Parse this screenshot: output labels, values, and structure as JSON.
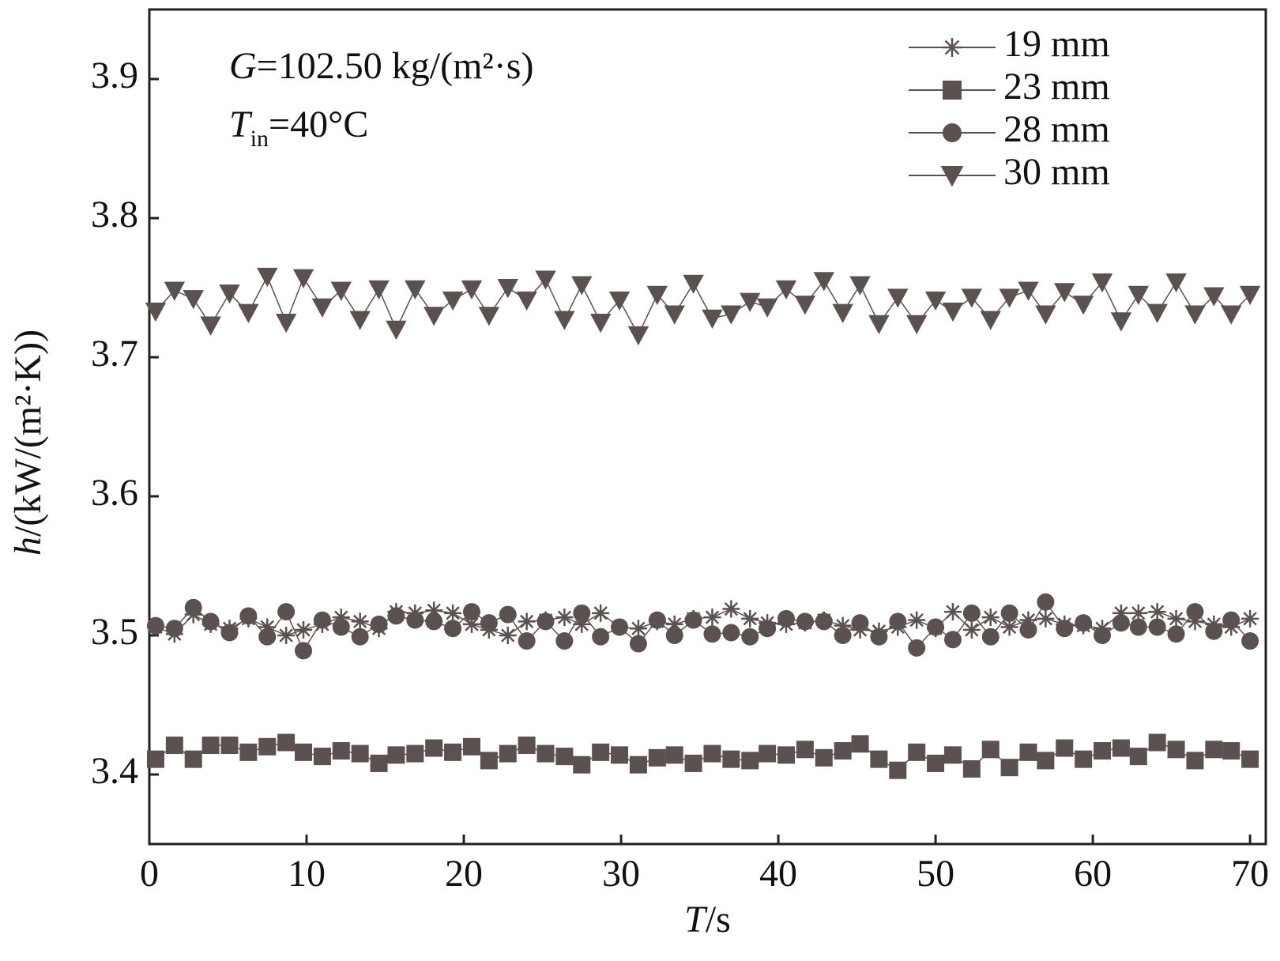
{
  "chart_data": {
    "type": "line",
    "annotations": [
      {
        "var": "G",
        "text": "=102.50 kg/(m²·s)"
      },
      {
        "var": "T",
        "sub": "in",
        "text": "=40°C"
      }
    ],
    "xlabel": {
      "var": "T",
      "text": "/s"
    },
    "ylabel": {
      "var": "h",
      "text": "/(kW/(m²·K))"
    },
    "xlim": [
      0,
      71
    ],
    "xticks": [
      0,
      10,
      20,
      30,
      40,
      50,
      60,
      70
    ],
    "ylim": [
      3.35,
      3.95
    ],
    "yticks": [
      3.4,
      3.5,
      3.6,
      3.7,
      3.8,
      3.9
    ],
    "legend": "upper right",
    "x": [
      0.4,
      1.6,
      2.8,
      3.9,
      5.1,
      6.3,
      7.5,
      8.7,
      9.8,
      11.0,
      12.2,
      13.4,
      14.6,
      15.7,
      16.9,
      18.1,
      19.3,
      20.5,
      21.6,
      22.8,
      24.0,
      25.2,
      26.4,
      27.5,
      28.7,
      29.9,
      31.1,
      32.3,
      33.4,
      34.6,
      35.8,
      37.0,
      38.2,
      39.3,
      40.5,
      41.7,
      42.9,
      44.1,
      45.2,
      46.4,
      47.6,
      48.8,
      50.0,
      51.1,
      52.3,
      53.5,
      54.7,
      55.9,
      57.0,
      58.2,
      59.4,
      60.6,
      61.8,
      62.9,
      64.1,
      65.3,
      66.5,
      67.7,
      68.8,
      70.0
    ],
    "series": [
      {
        "name": "19 mm",
        "color": "#5a5150",
        "marker": "star",
        "values": [
          3.506,
          3.501,
          3.515,
          3.508,
          3.505,
          3.512,
          3.506,
          3.5,
          3.504,
          3.508,
          3.513,
          3.51,
          3.505,
          3.517,
          3.516,
          3.518,
          3.516,
          3.508,
          3.504,
          3.5,
          3.51,
          3.511,
          3.513,
          3.508,
          3.516,
          3.506,
          3.505,
          3.51,
          3.508,
          3.512,
          3.513,
          3.519,
          3.512,
          3.509,
          3.508,
          3.509,
          3.511,
          3.507,
          3.504,
          3.503,
          3.506,
          3.511,
          3.505,
          3.517,
          3.504,
          3.513,
          3.506,
          3.511,
          3.512,
          3.508,
          3.507,
          3.505,
          3.516,
          3.516,
          3.517,
          3.512,
          3.51,
          3.508,
          3.506,
          3.512
        ]
      },
      {
        "name": "23 mm",
        "color": "#5a5150",
        "marker": "square",
        "values": [
          3.411,
          3.421,
          3.411,
          3.421,
          3.421,
          3.416,
          3.42,
          3.423,
          3.416,
          3.413,
          3.417,
          3.415,
          3.408,
          3.414,
          3.415,
          3.419,
          3.416,
          3.42,
          3.41,
          3.415,
          3.421,
          3.415,
          3.413,
          3.407,
          3.416,
          3.414,
          3.407,
          3.412,
          3.414,
          3.408,
          3.415,
          3.411,
          3.41,
          3.415,
          3.414,
          3.418,
          3.412,
          3.417,
          3.422,
          3.411,
          3.403,
          3.416,
          3.408,
          3.414,
          3.404,
          3.418,
          3.405,
          3.416,
          3.41,
          3.419,
          3.411,
          3.417,
          3.419,
          3.413,
          3.423,
          3.418,
          3.41,
          3.418,
          3.417,
          3.411
        ]
      },
      {
        "name": "28 mm",
        "color": "#5a5150",
        "marker": "circle",
        "values": [
          3.507,
          3.505,
          3.52,
          3.51,
          3.502,
          3.514,
          3.499,
          3.517,
          3.489,
          3.511,
          3.506,
          3.499,
          3.508,
          3.514,
          3.511,
          3.51,
          3.505,
          3.517,
          3.509,
          3.515,
          3.496,
          3.51,
          3.496,
          3.516,
          3.499,
          3.506,
          3.494,
          3.511,
          3.5,
          3.511,
          3.501,
          3.502,
          3.499,
          3.505,
          3.512,
          3.51,
          3.51,
          3.5,
          3.509,
          3.499,
          3.51,
          3.491,
          3.506,
          3.497,
          3.516,
          3.499,
          3.516,
          3.504,
          3.524,
          3.505,
          3.509,
          3.5,
          3.509,
          3.506,
          3.506,
          3.501,
          3.517,
          3.503,
          3.511,
          3.496
        ]
      },
      {
        "name": "30 mm",
        "color": "#5a5150",
        "marker": "triangle-down",
        "values": [
          3.733,
          3.748,
          3.742,
          3.723,
          3.746,
          3.732,
          3.758,
          3.725,
          3.757,
          3.736,
          3.748,
          3.727,
          3.749,
          3.72,
          3.749,
          3.73,
          3.741,
          3.749,
          3.73,
          3.75,
          3.741,
          3.756,
          3.727,
          3.752,
          3.725,
          3.741,
          3.716,
          3.745,
          3.731,
          3.753,
          3.728,
          3.731,
          3.74,
          3.736,
          3.749,
          3.738,
          3.755,
          3.732,
          3.752,
          3.724,
          3.743,
          3.724,
          3.741,
          3.733,
          3.743,
          3.727,
          3.743,
          3.748,
          3.731,
          3.747,
          3.738,
          3.754,
          3.726,
          3.745,
          3.732,
          3.754,
          3.731,
          3.744,
          3.731,
          3.745
        ]
      }
    ]
  }
}
